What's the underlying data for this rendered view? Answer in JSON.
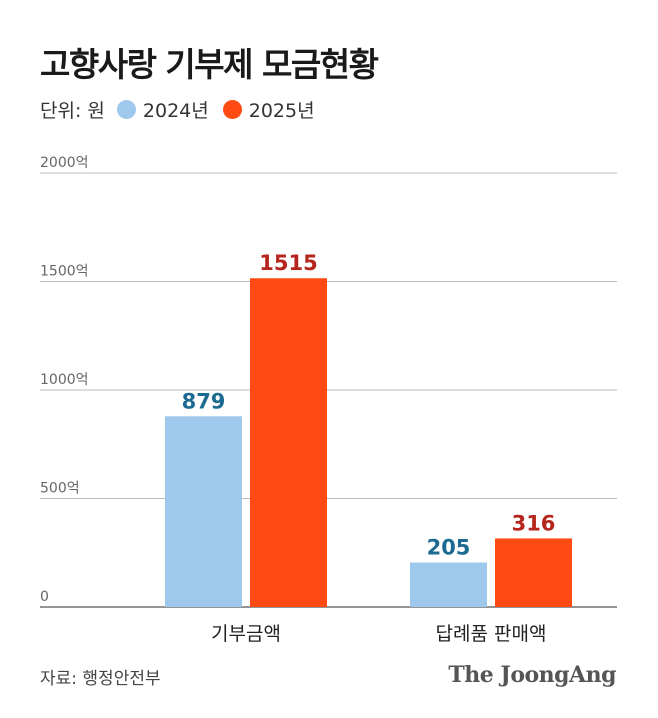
{
  "chart_data": {
    "type": "bar",
    "title": "고향사랑 기부제 모금현황",
    "unit_label": "단위: 원",
    "categories": [
      "기부금액",
      "답례품 판매액"
    ],
    "series": [
      {
        "name": "2024년",
        "values": [
          879,
          205
        ],
        "color": "#9fc9ec",
        "label_color": "#1c6a91"
      },
      {
        "name": "2025년",
        "values": [
          1515,
          316
        ],
        "color": "#ff4a14",
        "label_color": "#b5251b"
      }
    ],
    "y_ticks": [
      {
        "value": 0,
        "label": "0"
      },
      {
        "value": 500,
        "label": "500억"
      },
      {
        "value": 1000,
        "label": "1000억"
      },
      {
        "value": 1500,
        "label": "1500억"
      },
      {
        "value": 2000,
        "label": "2000억"
      }
    ],
    "ylim": [
      0,
      2000
    ],
    "grid": true,
    "legend_position": "top-left"
  },
  "footer": {
    "source": "자료: 행정안전부",
    "logo_text": "The JoongAng"
  }
}
